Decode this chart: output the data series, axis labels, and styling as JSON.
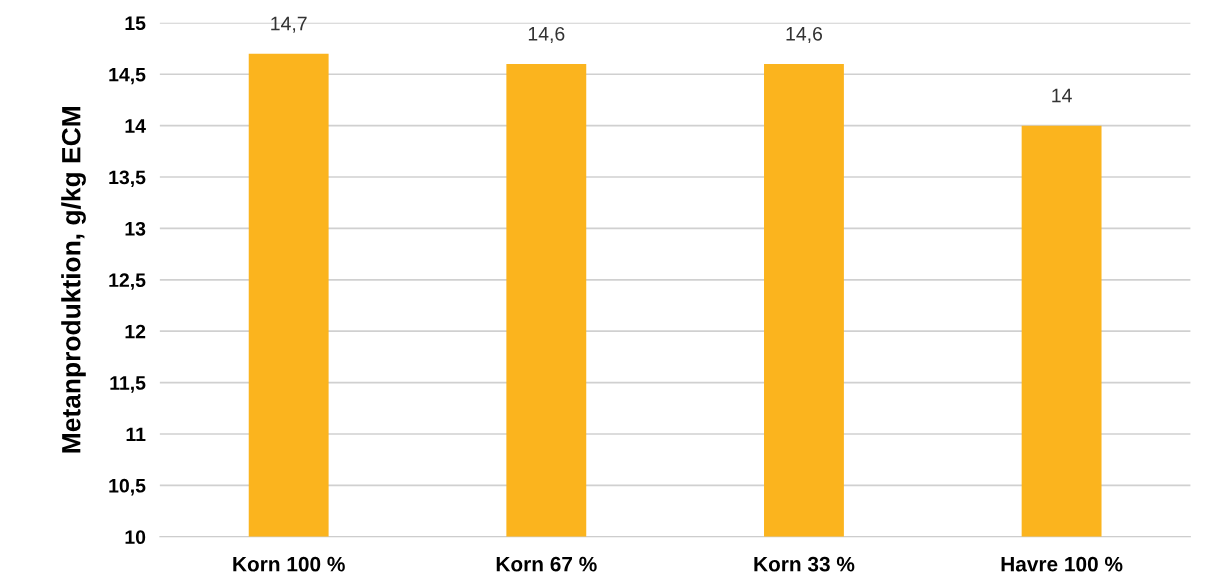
{
  "chart_data": {
    "type": "bar",
    "ylabel": "Metanproduktion, g/kg ECM",
    "categories": [
      "Korn 100 %",
      "Korn 67 %",
      "Korn 33 %",
      "Havre 100 %"
    ],
    "values": [
      14.7,
      14.6,
      14.6,
      14.0
    ],
    "value_labels": [
      "14,7",
      "14,6",
      "14,6",
      "14"
    ],
    "color": "#fbb41e",
    "ylim": [
      10,
      15
    ],
    "yticks": [
      10,
      {
        "value": 10.5,
        "label": "10,5"
      },
      11,
      {
        "value": 11.5,
        "label": "11,5"
      },
      12,
      {
        "value": 12.5,
        "label": "12,5"
      },
      13,
      {
        "value": 13.5,
        "label": "13,5"
      },
      14,
      {
        "value": 14.5,
        "label": "14,5"
      },
      15
    ],
    "grid": "y"
  }
}
